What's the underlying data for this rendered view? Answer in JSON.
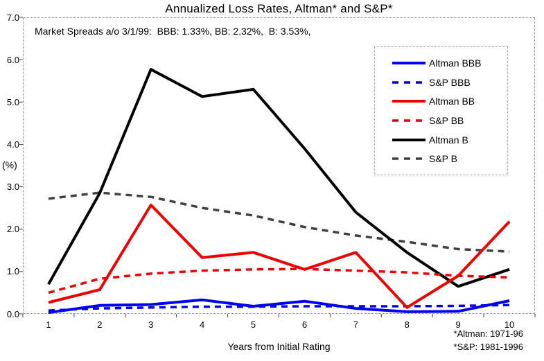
{
  "chart_data": {
    "type": "line",
    "title": "Annualized Loss Rates, Altman* and S&P*",
    "annotation": "Market Spreads a/o 3/1/99:  BBB: 1.33%, BB: 2.32%,  B: 3.53%,",
    "xlabel": "Years from Initial Rating",
    "ylabel": "(%)",
    "x": [
      1,
      2,
      3,
      4,
      5,
      6,
      7,
      8,
      9,
      10
    ],
    "ylim": [
      0.0,
      7.0
    ],
    "yticks": [
      "0.0",
      "1.0",
      "2.0",
      "3.0",
      "4.0",
      "5.0",
      "6.0",
      "7.0"
    ],
    "grid": false,
    "legend_position": "upper right",
    "footnotes": [
      "*Altman: 1971-96",
      "*S&P: 1981-1996"
    ],
    "series": [
      {
        "name": "Altman BBB",
        "color": "#0000ee",
        "style": "solid",
        "values": [
          0.03,
          0.2,
          0.22,
          0.33,
          0.18,
          0.3,
          0.13,
          0.05,
          0.06,
          0.31
        ]
      },
      {
        "name": "S&P BBB",
        "color": "#0000ee",
        "style": "dashed",
        "values": [
          0.08,
          0.13,
          0.15,
          0.17,
          0.17,
          0.18,
          0.18,
          0.18,
          0.19,
          0.21
        ]
      },
      {
        "name": "Altman BB",
        "color": "#ee0000",
        "style": "solid",
        "values": [
          0.27,
          0.57,
          2.57,
          1.33,
          1.45,
          1.05,
          1.45,
          0.15,
          0.9,
          2.18
        ]
      },
      {
        "name": "S&P BB",
        "color": "#ee0000",
        "style": "dashed",
        "values": [
          0.5,
          0.83,
          0.95,
          1.02,
          1.05,
          1.06,
          1.02,
          0.98,
          0.9,
          0.86
        ]
      },
      {
        "name": "Altman B",
        "color": "#000000",
        "style": "solid",
        "values": [
          0.7,
          2.85,
          5.77,
          5.13,
          5.3,
          3.9,
          2.4,
          1.45,
          0.65,
          1.05
        ]
      },
      {
        "name": "S&P B",
        "color": "#404040",
        "style": "dashed",
        "values": [
          2.72,
          2.86,
          2.76,
          2.5,
          2.32,
          2.05,
          1.85,
          1.7,
          1.53,
          1.47
        ]
      }
    ],
    "styles": {
      "plot_border_color": "#808080",
      "axis_tick_color": "#404040",
      "background": "#ffffff",
      "text_color": "#000000"
    }
  }
}
